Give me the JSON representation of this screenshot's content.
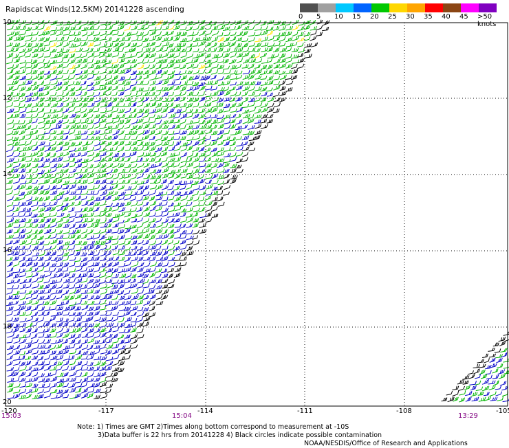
{
  "title": "Rapidscat Winds(12.5KM) 20141228 ascending",
  "legend": {
    "labels": [
      "0",
      "5",
      "10",
      "15",
      "20",
      "25",
      "30",
      "35",
      "40",
      "45",
      ">50 knots"
    ],
    "colors": [
      "#505050",
      "#a0a0a0",
      "#00c8ff",
      "#0064ff",
      "#00c800",
      "#ffd700",
      "#ffa500",
      "#ff0000",
      "#8b4513",
      "#ff00ff",
      "#8000c0"
    ]
  },
  "axes": {
    "y_ticks": [
      "10",
      "12",
      "14",
      "16",
      "18",
      "20"
    ],
    "x_ticks": [
      "-120",
      "-117",
      "-114",
      "-111",
      "-108",
      "-105"
    ]
  },
  "time_labels": [
    "15:03",
    "15:04",
    "13:29"
  ],
  "notes": {
    "line1": "Note: 1) Times are GMT 2)Times along bottom correspond to measurement at -10S",
    "line2": "3)Data buffer is 22 hrs from 20141228 4) Black circles indicate possible contamination",
    "line3": "NOAA/NESDIS/Office of Research and Applications"
  },
  "map": {
    "lon_range": [
      -120,
      -105
    ],
    "lat_range": [
      -10,
      -20
    ],
    "grid": true,
    "swaths": [
      "left swath",
      "lower-right swath"
    ],
    "wind_colors": {
      "slow": "#0000c8",
      "medium": "#00b400",
      "fast": "#ffe600",
      "edge": "#000000"
    }
  }
}
